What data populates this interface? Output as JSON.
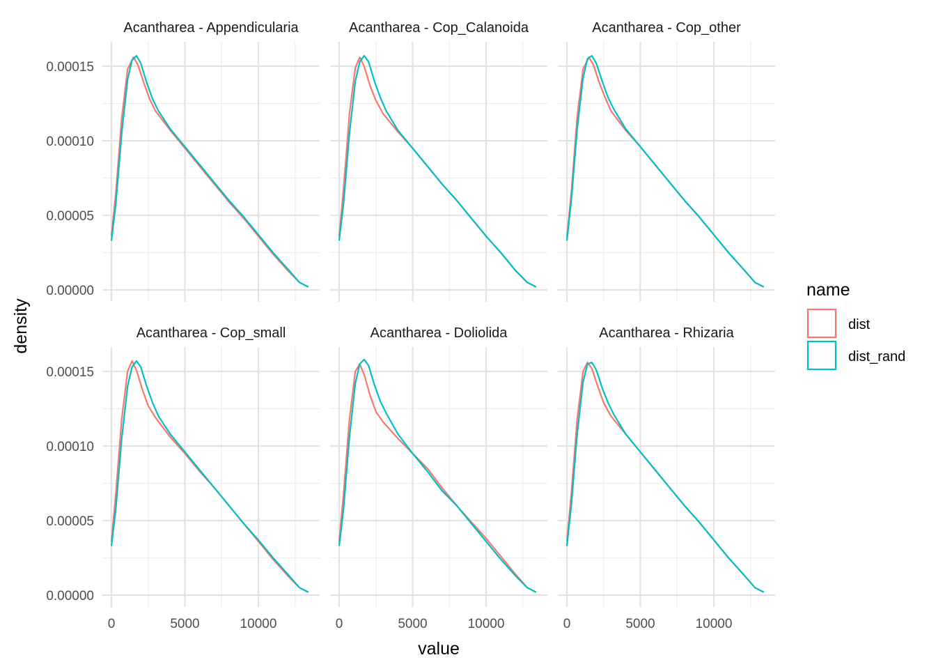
{
  "chart_data": {
    "type": "line",
    "subtype": "density-facets",
    "xlabel": "value",
    "ylabel": "density",
    "xlim": [
      0,
      13500
    ],
    "ylim": [
      0,
      0.000165
    ],
    "x_ticks": [
      0,
      5000,
      10000
    ],
    "x_tick_labels": [
      "0",
      "5000",
      "10000"
    ],
    "y_ticks": [
      0,
      5e-05,
      0.0001,
      0.00015
    ],
    "y_tick_labels": [
      "0.00000",
      "0.00005",
      "0.00010",
      "0.00015"
    ],
    "grid": true,
    "legend": {
      "title": "name",
      "position": "right",
      "entries": [
        {
          "label": "dist",
          "color": "#F8766D"
        },
        {
          "label": "dist_rand",
          "color": "#00BFC4"
        }
      ]
    },
    "facets": [
      {
        "title": "Acantharea - Appendicularia",
        "series": [
          {
            "name": "dist",
            "color": "#F8766D",
            "x": [
              0,
              300,
              700,
              1100,
              1500,
              1800,
              2200,
              2600,
              3000,
              4000,
              5000,
              6000,
              7000,
              8000,
              9000,
              10000,
              11000,
              12000,
              12800,
              13400
            ],
            "y": [
              3.6e-05,
              6.5e-05,
              0.000115,
              0.000148,
              0.000156,
              0.000151,
              0.000139,
              0.000128,
              0.00012,
              0.000107,
              9.5e-05,
              8.3e-05,
              7.1e-05,
              5.9e-05,
              4.8e-05,
              3.6e-05,
              2.4e-05,
              1.3e-05,
              5e-06,
              2e-06
            ]
          },
          {
            "name": "dist_rand",
            "color": "#00BFC4",
            "x": [
              0,
              300,
              700,
              1100,
              1400,
              1700,
              2000,
              2400,
              2800,
              3200,
              4000,
              5000,
              6000,
              7000,
              8000,
              9000,
              10000,
              11000,
              12000,
              12800,
              13400
            ],
            "y": [
              3.3e-05,
              5.8e-05,
              0.000105,
              0.000141,
              0.000154,
              0.000157,
              0.000152,
              0.000139,
              0.000128,
              0.00012,
              0.000108,
              9.6e-05,
              8.4e-05,
              7.2e-05,
              6e-05,
              4.9e-05,
              3.7e-05,
              2.5e-05,
              1.4e-05,
              5e-06,
              2e-06
            ]
          }
        ]
      },
      {
        "title": "Acantharea - Cop_Calanoida",
        "series": [
          {
            "name": "dist",
            "color": "#F8766D",
            "x": [
              0,
              300,
              700,
              1100,
              1400,
              1700,
              2100,
              2500,
              3000,
              4000,
              5000,
              6000,
              7000,
              8000,
              9000,
              10000,
              11000,
              12000,
              12800,
              13400
            ],
            "y": [
              3.6e-05,
              6.8e-05,
              0.000118,
              0.000149,
              0.000156,
              0.00015,
              0.000137,
              0.000127,
              0.000118,
              0.000106,
              9.5e-05,
              8.3e-05,
              7.1e-05,
              6e-05,
              4.8e-05,
              3.6e-05,
              2.5e-05,
              1.3e-05,
              5e-06,
              2e-06
            ]
          },
          {
            "name": "dist_rand",
            "color": "#00BFC4",
            "x": [
              0,
              300,
              700,
              1100,
              1400,
              1700,
              2000,
              2400,
              2800,
              3200,
              4000,
              5000,
              6000,
              7000,
              8000,
              9000,
              10000,
              11000,
              12000,
              12800,
              13400
            ],
            "y": [
              3.3e-05,
              5.8e-05,
              0.000105,
              0.00014,
              0.000153,
              0.000157,
              0.000153,
              0.00014,
              0.000129,
              0.00012,
              0.000107,
              9.5e-05,
              8.3e-05,
              7.1e-05,
              6e-05,
              4.8e-05,
              3.6e-05,
              2.5e-05,
              1.3e-05,
              5e-06,
              2e-06
            ]
          }
        ]
      },
      {
        "title": "Acantharea - Cop_other",
        "series": [
          {
            "name": "dist",
            "color": "#F8766D",
            "x": [
              0,
              300,
              700,
              1100,
              1500,
              1800,
              2200,
              2600,
              3000,
              4000,
              5000,
              6000,
              7000,
              8000,
              9000,
              10000,
              11000,
              12000,
              12800,
              13400
            ],
            "y": [
              3.5e-05,
              6.5e-05,
              0.000116,
              0.000148,
              0.000156,
              0.000151,
              0.000139,
              0.000129,
              0.00012,
              0.000107,
              9.6e-05,
              8.4e-05,
              7.2e-05,
              6e-05,
              4.9e-05,
              3.7e-05,
              2.5e-05,
              1.4e-05,
              5e-06,
              2e-06
            ]
          },
          {
            "name": "dist_rand",
            "color": "#00BFC4",
            "x": [
              0,
              300,
              700,
              1100,
              1400,
              1700,
              2000,
              2400,
              2800,
              3200,
              4000,
              5000,
              6000,
              7000,
              8000,
              9000,
              10000,
              11000,
              12000,
              12800,
              13400
            ],
            "y": [
              3.3e-05,
              6e-05,
              0.000108,
              0.000142,
              0.000155,
              0.000157,
              0.000152,
              0.00014,
              0.000129,
              0.000121,
              0.000108,
              9.6e-05,
              8.4e-05,
              7.2e-05,
              6e-05,
              4.9e-05,
              3.7e-05,
              2.5e-05,
              1.4e-05,
              5e-06,
              2e-06
            ]
          }
        ]
      },
      {
        "title": "Acantharea - Cop_small",
        "series": [
          {
            "name": "dist",
            "color": "#F8766D",
            "x": [
              0,
              300,
              700,
              1100,
              1400,
              1700,
              2100,
              2500,
              3000,
              4000,
              5000,
              6000,
              7000,
              8000,
              9000,
              10000,
              11000,
              12000,
              12800,
              13400
            ],
            "y": [
              3.6e-05,
              6.8e-05,
              0.000118,
              0.00015,
              0.000157,
              0.000151,
              0.000138,
              0.000127,
              0.000119,
              0.000106,
              9.5e-05,
              8.3e-05,
              7.2e-05,
              6e-05,
              4.8e-05,
              3.6e-05,
              2.4e-05,
              1.3e-05,
              5e-06,
              2e-06
            ]
          },
          {
            "name": "dist_rand",
            "color": "#00BFC4",
            "x": [
              0,
              300,
              700,
              1100,
              1400,
              1700,
              2000,
              2400,
              2800,
              3200,
              4000,
              5000,
              6000,
              7000,
              8000,
              9000,
              10000,
              11000,
              12000,
              12800,
              13400
            ],
            "y": [
              3.3e-05,
              5.8e-05,
              0.000105,
              0.00014,
              0.000153,
              0.000157,
              0.000153,
              0.00014,
              0.000129,
              0.00012,
              0.000108,
              9.6e-05,
              8.4e-05,
              7.2e-05,
              6e-05,
              4.8e-05,
              3.7e-05,
              2.5e-05,
              1.4e-05,
              5e-06,
              2e-06
            ]
          }
        ]
      },
      {
        "title": "Acantharea - Doliolida",
        "series": [
          {
            "name": "dist",
            "color": "#F8766D",
            "x": [
              0,
              300,
              700,
              1100,
              1400,
              1700,
              2100,
              2500,
              3000,
              4000,
              5000,
              6000,
              7000,
              8000,
              9000,
              10000,
              11000,
              12000,
              12800,
              13400
            ],
            "y": [
              3.6e-05,
              6.8e-05,
              0.000118,
              0.00015,
              0.000155,
              0.000148,
              0.000134,
              0.000123,
              0.000116,
              0.000105,
              9.5e-05,
              8.5e-05,
              7.2e-05,
              6e-05,
              4.9e-05,
              3.8e-05,
              2.6e-05,
              1.4e-05,
              5e-06,
              2e-06
            ]
          },
          {
            "name": "dist_rand",
            "color": "#00BFC4",
            "x": [
              0,
              300,
              700,
              1100,
              1400,
              1700,
              2000,
              2400,
              2800,
              3200,
              4000,
              5000,
              6000,
              7000,
              8000,
              9000,
              10000,
              11000,
              12000,
              12800,
              13400
            ],
            "y": [
              3.3e-05,
              5.8e-05,
              0.000106,
              0.000142,
              0.000155,
              0.000158,
              0.000154,
              0.000141,
              0.00013,
              0.000122,
              0.000108,
              9.5e-05,
              8.3e-05,
              7e-05,
              6e-05,
              4.8e-05,
              3.6e-05,
              2.4e-05,
              1.3e-05,
              5e-06,
              2e-06
            ]
          }
        ]
      },
      {
        "title": "Acantharea - Rhizaria",
        "series": [
          {
            "name": "dist",
            "color": "#F8766D",
            "x": [
              0,
              300,
              700,
              1100,
              1400,
              1700,
              2100,
              2500,
              3000,
              4000,
              5000,
              6000,
              7000,
              8000,
              9000,
              10000,
              11000,
              12000,
              12800,
              13400
            ],
            "y": [
              3.6e-05,
              6.8e-05,
              0.000118,
              0.00015,
              0.000156,
              0.000152,
              0.00014,
              0.000129,
              0.00012,
              0.000108,
              9.6e-05,
              8.4e-05,
              7.2e-05,
              6e-05,
              4.9e-05,
              3.7e-05,
              2.5e-05,
              1.4e-05,
              5e-06,
              2e-06
            ]
          },
          {
            "name": "dist_rand",
            "color": "#00BFC4",
            "x": [
              0,
              300,
              700,
              1100,
              1400,
              1700,
              2000,
              2400,
              2800,
              3200,
              4000,
              5000,
              6000,
              7000,
              8000,
              9000,
              10000,
              11000,
              12000,
              12800,
              13400
            ],
            "y": [
              3.3e-05,
              6e-05,
              0.000108,
              0.000143,
              0.000155,
              0.000156,
              0.000151,
              0.000139,
              0.000129,
              0.000121,
              0.000108,
              9.6e-05,
              8.4e-05,
              7.2e-05,
              6e-05,
              4.9e-05,
              3.7e-05,
              2.5e-05,
              1.4e-05,
              5e-06,
              2e-06
            ]
          }
        ]
      }
    ]
  }
}
